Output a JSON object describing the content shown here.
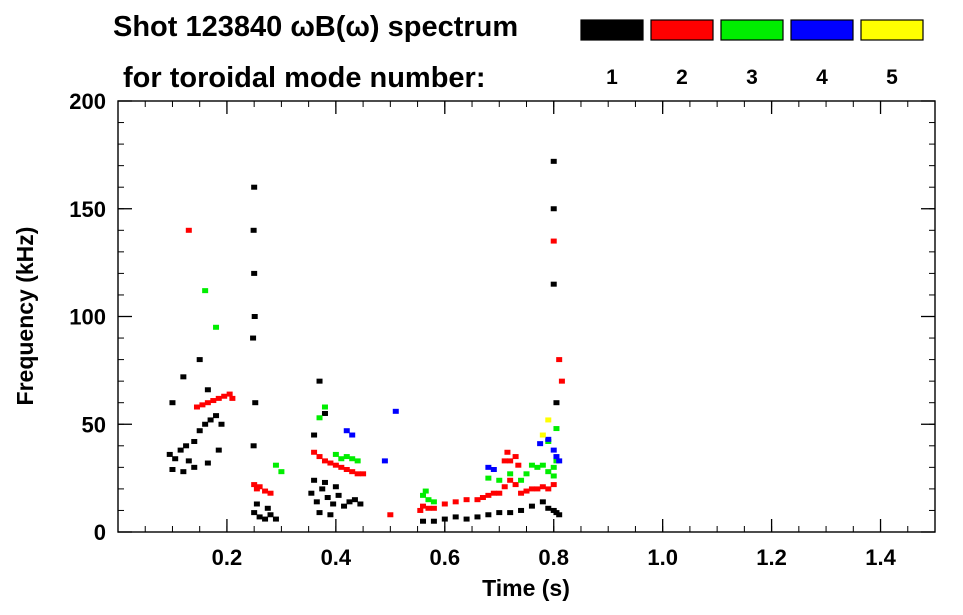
{
  "chart_data": {
    "type": "scatter",
    "title": "Shot 123840 ωB(ω) spectrum",
    "subtitle": "for toroidal mode number:",
    "xlabel": "Time (s)",
    "ylabel": "Frequency (kHz)",
    "xlim": [
      0.0,
      1.5
    ],
    "ylim": [
      0,
      200
    ],
    "xticks": [
      0.2,
      0.4,
      0.6,
      0.8,
      1.0,
      1.2,
      1.4
    ],
    "xtick_labels": [
      "0.2",
      "0.4",
      "0.6",
      "0.8",
      "1.0",
      "1.2",
      "1.4"
    ],
    "yticks": [
      0,
      50,
      100,
      150,
      200
    ],
    "ytick_labels": [
      "0",
      "50",
      "100",
      "150",
      "200"
    ],
    "x_minor_step": 0.05,
    "y_minor_step": 10,
    "grid": false,
    "legend_position": "top-right",
    "series": [
      {
        "name": "1",
        "color": "#000000",
        "points": [
          [
            0.095,
            36
          ],
          [
            0.105,
            34
          ],
          [
            0.115,
            38
          ],
          [
            0.125,
            40
          ],
          [
            0.13,
            33
          ],
          [
            0.14,
            42
          ],
          [
            0.15,
            47
          ],
          [
            0.16,
            50
          ],
          [
            0.17,
            52
          ],
          [
            0.18,
            54
          ],
          [
            0.19,
            50
          ],
          [
            0.1,
            29
          ],
          [
            0.12,
            28
          ],
          [
            0.14,
            30
          ],
          [
            0.165,
            32
          ],
          [
            0.185,
            38
          ],
          [
            0.1,
            60
          ],
          [
            0.12,
            72
          ],
          [
            0.15,
            80
          ],
          [
            0.165,
            66
          ],
          [
            0.248,
            90
          ],
          [
            0.249,
            140
          ],
          [
            0.25,
            120
          ],
          [
            0.25,
            160
          ],
          [
            0.251,
            100
          ],
          [
            0.252,
            60
          ],
          [
            0.249,
            40
          ],
          [
            0.25,
            9
          ],
          [
            0.26,
            7
          ],
          [
            0.27,
            6
          ],
          [
            0.28,
            8
          ],
          [
            0.29,
            6
          ],
          [
            0.255,
            13
          ],
          [
            0.275,
            11
          ],
          [
            0.355,
            18
          ],
          [
            0.365,
            14
          ],
          [
            0.375,
            20
          ],
          [
            0.385,
            16
          ],
          [
            0.395,
            13
          ],
          [
            0.405,
            17
          ],
          [
            0.415,
            12
          ],
          [
            0.425,
            14
          ],
          [
            0.435,
            15
          ],
          [
            0.445,
            13
          ],
          [
            0.36,
            24
          ],
          [
            0.38,
            23
          ],
          [
            0.4,
            21
          ],
          [
            0.37,
            9
          ],
          [
            0.39,
            8
          ],
          [
            0.37,
            70
          ],
          [
            0.38,
            55
          ],
          [
            0.36,
            45
          ],
          [
            0.56,
            5
          ],
          [
            0.58,
            5
          ],
          [
            0.6,
            6
          ],
          [
            0.62,
            7
          ],
          [
            0.64,
            6
          ],
          [
            0.66,
            7
          ],
          [
            0.68,
            8
          ],
          [
            0.7,
            9
          ],
          [
            0.72,
            9
          ],
          [
            0.74,
            10
          ],
          [
            0.76,
            12
          ],
          [
            0.78,
            14
          ],
          [
            0.79,
            11
          ],
          [
            0.8,
            10
          ],
          [
            0.805,
            9
          ],
          [
            0.81,
            8
          ],
          [
            0.8,
            172
          ],
          [
            0.8,
            150
          ],
          [
            0.8,
            115
          ],
          [
            0.805,
            60
          ]
        ]
      },
      {
        "name": "2",
        "color": "#ff0000",
        "points": [
          [
            0.13,
            140
          ],
          [
            0.145,
            58
          ],
          [
            0.155,
            59
          ],
          [
            0.165,
            60
          ],
          [
            0.175,
            61
          ],
          [
            0.185,
            62
          ],
          [
            0.195,
            63
          ],
          [
            0.205,
            64
          ],
          [
            0.21,
            62
          ],
          [
            0.25,
            22
          ],
          [
            0.26,
            21
          ],
          [
            0.27,
            19
          ],
          [
            0.28,
            18
          ],
          [
            0.255,
            20
          ],
          [
            0.36,
            37
          ],
          [
            0.37,
            35
          ],
          [
            0.38,
            33
          ],
          [
            0.39,
            32
          ],
          [
            0.4,
            31
          ],
          [
            0.41,
            30
          ],
          [
            0.42,
            29
          ],
          [
            0.43,
            28
          ],
          [
            0.44,
            27
          ],
          [
            0.45,
            27
          ],
          [
            0.5,
            8
          ],
          [
            0.555,
            10
          ],
          [
            0.56,
            12
          ],
          [
            0.57,
            11
          ],
          [
            0.58,
            11
          ],
          [
            0.6,
            13
          ],
          [
            0.62,
            14
          ],
          [
            0.64,
            15
          ],
          [
            0.66,
            15
          ],
          [
            0.67,
            16
          ],
          [
            0.68,
            17
          ],
          [
            0.69,
            18
          ],
          [
            0.7,
            18
          ],
          [
            0.71,
            21
          ],
          [
            0.72,
            24
          ],
          [
            0.73,
            22
          ],
          [
            0.74,
            18
          ],
          [
            0.75,
            19
          ],
          [
            0.76,
            20
          ],
          [
            0.77,
            20
          ],
          [
            0.78,
            21
          ],
          [
            0.79,
            20
          ],
          [
            0.8,
            22
          ],
          [
            0.71,
            33
          ],
          [
            0.715,
            37
          ],
          [
            0.72,
            33
          ],
          [
            0.73,
            35
          ],
          [
            0.735,
            31
          ],
          [
            0.8,
            135
          ],
          [
            0.81,
            80
          ],
          [
            0.815,
            70
          ]
        ]
      },
      {
        "name": "3",
        "color": "#00ee00",
        "points": [
          [
            0.16,
            112
          ],
          [
            0.18,
            95
          ],
          [
            0.29,
            31
          ],
          [
            0.3,
            28
          ],
          [
            0.37,
            53
          ],
          [
            0.38,
            58
          ],
          [
            0.42,
            35
          ],
          [
            0.43,
            34
          ],
          [
            0.44,
            33
          ],
          [
            0.4,
            36
          ],
          [
            0.41,
            34
          ],
          [
            0.56,
            17
          ],
          [
            0.565,
            19
          ],
          [
            0.57,
            15
          ],
          [
            0.58,
            14
          ],
          [
            0.68,
            25
          ],
          [
            0.7,
            24
          ],
          [
            0.72,
            27
          ],
          [
            0.74,
            24
          ],
          [
            0.75,
            27
          ],
          [
            0.76,
            31
          ],
          [
            0.77,
            30
          ],
          [
            0.78,
            31
          ],
          [
            0.79,
            28
          ],
          [
            0.8,
            30
          ],
          [
            0.8,
            26
          ],
          [
            0.805,
            33
          ],
          [
            0.79,
            42
          ],
          [
            0.805,
            48
          ]
        ]
      },
      {
        "name": "4",
        "color": "#0000ff",
        "points": [
          [
            0.42,
            47
          ],
          [
            0.43,
            45
          ],
          [
            0.49,
            33
          ],
          [
            0.51,
            56
          ],
          [
            0.68,
            30
          ],
          [
            0.69,
            29
          ],
          [
            0.775,
            41
          ],
          [
            0.79,
            43
          ],
          [
            0.8,
            38
          ],
          [
            0.805,
            35
          ],
          [
            0.81,
            33
          ]
        ]
      },
      {
        "name": "5",
        "color": "#ffff00",
        "points": [
          [
            0.78,
            45
          ],
          [
            0.79,
            52
          ]
        ]
      }
    ]
  }
}
